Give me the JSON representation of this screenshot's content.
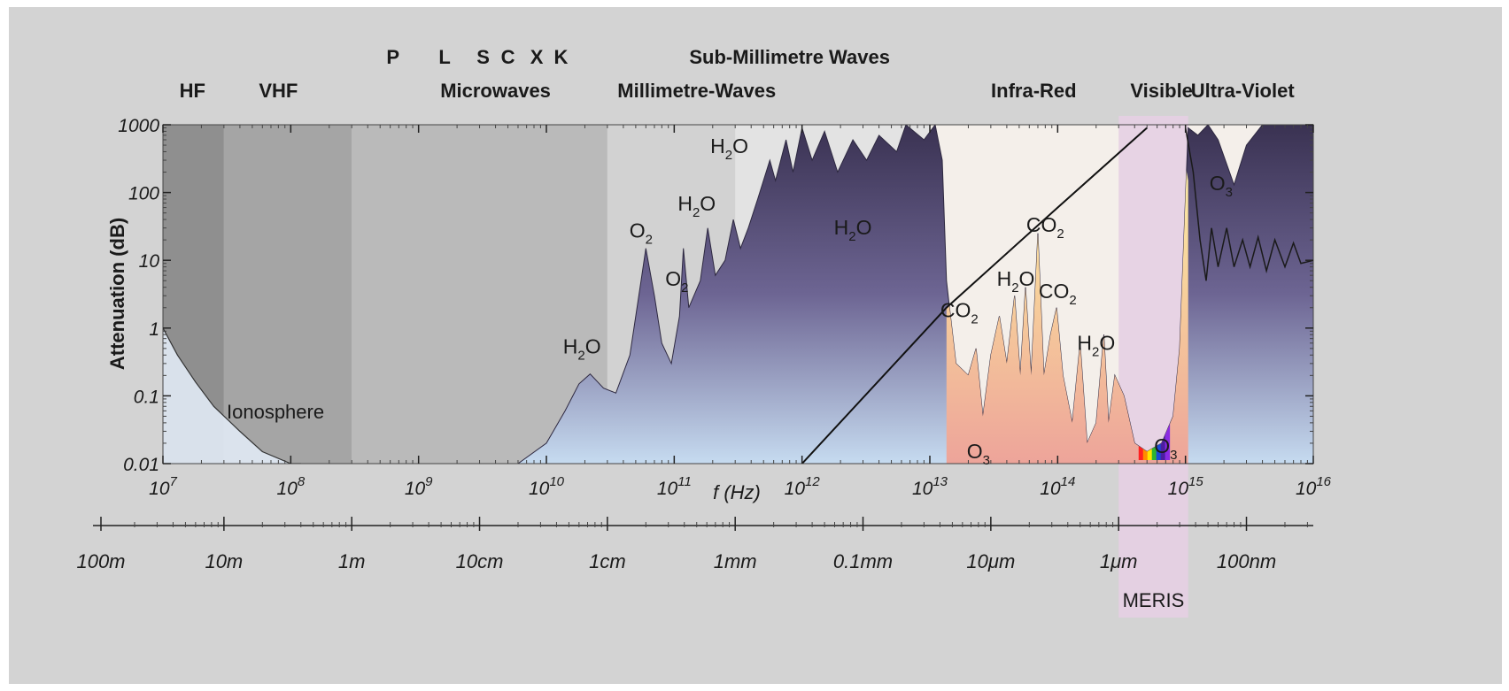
{
  "chart_data": {
    "type": "area",
    "title": "",
    "ylabel": "Attenuation (dB)",
    "xlabel": "f (Hz)",
    "x_scale": "log",
    "y_scale": "log",
    "xlim": [
      10000000.0,
      1e+16
    ],
    "ylim": [
      0.01,
      1000
    ],
    "x_ticks": [
      {
        "value": 10000000.0,
        "base": "10",
        "exp": "7"
      },
      {
        "value": 100000000.0,
        "base": "10",
        "exp": "8"
      },
      {
        "value": 1000000000.0,
        "base": "10",
        "exp": "9"
      },
      {
        "value": 10000000000.0,
        "base": "10",
        "exp": "10"
      },
      {
        "value": 100000000000.0,
        "base": "10",
        "exp": "11"
      },
      {
        "value": 1000000000000.0,
        "base": "10",
        "exp": "12"
      },
      {
        "value": 10000000000000.0,
        "base": "10",
        "exp": "13"
      },
      {
        "value": 100000000000000.0,
        "base": "10",
        "exp": "14"
      },
      {
        "value": 1000000000000000.0,
        "base": "10",
        "exp": "15"
      },
      {
        "value": 1e+16,
        "base": "10",
        "exp": "16"
      }
    ],
    "y_ticks": [
      {
        "value": 1000,
        "label": "1000"
      },
      {
        "value": 100,
        "label": "100"
      },
      {
        "value": 10,
        "label": "10"
      },
      {
        "value": 1,
        "label": "1"
      },
      {
        "value": 0.1,
        "label": "0.1"
      },
      {
        "value": 0.01,
        "label": "0.01"
      }
    ],
    "wavelength_ticks": [
      {
        "freq": 3000000.0,
        "label": "100m"
      },
      {
        "freq": 30000000.0,
        "label": "10m"
      },
      {
        "freq": 300000000.0,
        "label": "1m"
      },
      {
        "freq": 3000000000.0,
        "label": "10cm"
      },
      {
        "freq": 30000000000.0,
        "label": "1cm"
      },
      {
        "freq": 300000000000.0,
        "label": "1mm"
      },
      {
        "freq": 3000000000000.0,
        "label": "0.1mm"
      },
      {
        "freq": 30000000000000.0,
        "label": "10μm"
      },
      {
        "freq": 300000000000000.0,
        "label": "1μm"
      },
      {
        "freq": 3000000000000000.0,
        "label": "100nm"
      }
    ],
    "band_labels_upper": [
      {
        "freq": 630000000.0,
        "text": "P"
      },
      {
        "freq": 1600000000.0,
        "text": "L"
      },
      {
        "freq": 3200000000.0,
        "text": "S"
      },
      {
        "freq": 5000000000.0,
        "text": "C"
      },
      {
        "freq": 8400000000.0,
        "text": "X"
      },
      {
        "freq": 13000000000.0,
        "text": "K"
      },
      {
        "freq": 800000000000.0,
        "text": "Sub-Millimetre Waves"
      }
    ],
    "band_labels": [
      {
        "freq": 17000000.0,
        "text": "HF"
      },
      {
        "freq": 80000000.0,
        "text": "VHF"
      },
      {
        "freq": 4000000000.0,
        "text": "Microwaves"
      },
      {
        "freq": 150000000000.0,
        "text": "Millimetre-Waves"
      },
      {
        "freq": 65000000000000.0,
        "text": "Infra-Red"
      },
      {
        "freq": 650000000000000.0,
        "text": "Visible"
      },
      {
        "freq": 2800000000000000.0,
        "text": "Ultra-Violet"
      }
    ],
    "regions": [
      {
        "name": "hf",
        "from": 10000000.0,
        "to": 30000000.0,
        "color": "#8f8f8f"
      },
      {
        "name": "vhf",
        "from": 30000000.0,
        "to": 300000000.0,
        "color": "#a5a5a5"
      },
      {
        "name": "microwave",
        "from": 300000000.0,
        "to": 30000000000.0,
        "color": "#bababa"
      },
      {
        "name": "millimetre",
        "from": 30000000000.0,
        "to": 300000000000.0,
        "color": "#d2d2d2"
      },
      {
        "name": "submillimetre",
        "from": 300000000000.0,
        "to": 10000000000000.0,
        "color": "#e3e3e3"
      },
      {
        "name": "infrared",
        "from": 10000000000000.0,
        "to": 1e+16,
        "color": "#f4efea"
      }
    ],
    "ionosphere_label": "Ionosphere",
    "ionosphere_cutoff": [
      [
        10000000.0,
        1
      ],
      [
        13000000.0,
        0.4
      ],
      [
        18000000.0,
        0.16
      ],
      [
        25000000.0,
        0.07
      ],
      [
        40000000.0,
        0.03
      ],
      [
        60000000.0,
        0.015
      ],
      [
        100000000.0,
        0.01
      ],
      [
        120000000.0,
        0.01
      ]
    ],
    "atmospheric_attenuation": [
      [
        10000000.0,
        0.01
      ],
      [
        6000000000.0,
        0.01
      ],
      [
        10000000000.0,
        0.02
      ],
      [
        14000000000.0,
        0.06
      ],
      [
        18000000000.0,
        0.15
      ],
      [
        22000000000.0,
        0.21
      ],
      [
        28000000000.0,
        0.13
      ],
      [
        35000000000.0,
        0.11
      ],
      [
        45000000000.0,
        0.4
      ],
      [
        55000000000.0,
        5
      ],
      [
        60000000000.0,
        15
      ],
      [
        70000000000.0,
        3
      ],
      [
        80000000000.0,
        0.6
      ],
      [
        95000000000.0,
        0.3
      ],
      [
        110000000000.0,
        1.5
      ],
      [
        118000000000.0,
        15
      ],
      [
        130000000000.0,
        2
      ],
      [
        160000000000.0,
        5
      ],
      [
        183000000000.0,
        30
      ],
      [
        210000000000.0,
        6
      ],
      [
        250000000000.0,
        10
      ],
      [
        290000000000.0,
        40
      ],
      [
        330000000000.0,
        15
      ],
      [
        380000000000.0,
        30
      ],
      [
        450000000000.0,
        80
      ],
      [
        560000000000.0,
        300
      ],
      [
        620000000000.0,
        150
      ],
      [
        750000000000.0,
        600
      ],
      [
        850000000000.0,
        200
      ],
      [
        1000000000000.0,
        900
      ],
      [
        1200000000000.0,
        300
      ],
      [
        1500000000000.0,
        800
      ],
      [
        1900000000000.0,
        200
      ],
      [
        2500000000000.0,
        600
      ],
      [
        3200000000000.0,
        300
      ],
      [
        4000000000000.0,
        700
      ],
      [
        5500000000000.0,
        400
      ],
      [
        6500000000000.0,
        1000
      ],
      [
        9000000000000.0,
        600
      ],
      [
        11000000000000.0,
        1000
      ],
      [
        12500000000000.0,
        300
      ],
      [
        13500000000000.0,
        5
      ],
      [
        14500000000000.0,
        1.5
      ],
      [
        16000000000000.0,
        0.3
      ],
      [
        20000000000000.0,
        0.2
      ],
      [
        23000000000000.0,
        0.5
      ],
      [
        26000000000000.0,
        0.05
      ],
      [
        30000000000000.0,
        0.4
      ],
      [
        35000000000000.0,
        1.5
      ],
      [
        40000000000000.0,
        0.3
      ],
      [
        46000000000000.0,
        3
      ],
      [
        51000000000000.0,
        0.2
      ],
      [
        56000000000000.0,
        4
      ],
      [
        62000000000000.0,
        0.2
      ],
      [
        70000000000000.0,
        25
      ],
      [
        78000000000000.0,
        0.2
      ],
      [
        88000000000000.0,
        0.8
      ],
      [
        98000000000000.0,
        2
      ],
      [
        110000000000000.0,
        0.2
      ],
      [
        130000000000000.0,
        0.04
      ],
      [
        150000000000000.0,
        0.6
      ],
      [
        170000000000000.0,
        0.02
      ],
      [
        200000000000000.0,
        0.04
      ],
      [
        230000000000000.0,
        0.8
      ],
      [
        250000000000000.0,
        0.04
      ],
      [
        280000000000000.0,
        0.2
      ],
      [
        330000000000000.0,
        0.1
      ],
      [
        400000000000000.0,
        0.02
      ],
      [
        500000000000000.0,
        0.015
      ],
      [
        650000000000000.0,
        0.02
      ],
      [
        800000000000000.0,
        0.05
      ],
      [
        900000000000000.0,
        0.5
      ],
      [
        1050000000000000.0,
        900
      ],
      [
        1250000000000000.0,
        700
      ],
      [
        1500000000000000.0,
        1000
      ],
      [
        1800000000000000.0,
        600
      ],
      [
        2400000000000000.0,
        130
      ],
      [
        3000000000000000.0,
        500
      ],
      [
        4000000000000000.0,
        1000
      ],
      [
        1e+16,
        1000
      ]
    ],
    "ozone_line": [
      [
        1000000000000000.0,
        900
      ],
      [
        1150000000000000.0,
        200
      ],
      [
        1300000000000000.0,
        20
      ],
      [
        1450000000000000.0,
        5
      ],
      [
        1600000000000000.0,
        30
      ],
      [
        1800000000000000.0,
        8
      ],
      [
        2100000000000000.0,
        30
      ],
      [
        2400000000000000.0,
        8
      ],
      [
        2800000000000000.0,
        20
      ],
      [
        3200000000000000.0,
        8
      ],
      [
        3700000000000000.0,
        22
      ],
      [
        4300000000000000.0,
        7
      ],
      [
        5000000000000000.0,
        20
      ],
      [
        6000000000000000.0,
        8
      ],
      [
        7000000000000000.0,
        18
      ],
      [
        8000000000000000.0,
        9
      ],
      [
        1e+16,
        10
      ]
    ],
    "transmission_envelope": [
      [
        1000000000000.0,
        0.01
      ],
      [
        13500000000000.0,
        2
      ],
      [
        100000000000000.0,
        60
      ],
      [
        500000000000000.0,
        900
      ]
    ],
    "gas_labels": [
      {
        "freq": 19000000000.0,
        "value": 0.35,
        "main": "H",
        "sub": "2",
        "tail": "O"
      },
      {
        "freq": 55000000000.0,
        "value": 18,
        "main": "O",
        "sub": "2",
        "tail": ""
      },
      {
        "freq": 105000000000.0,
        "value": 3.5,
        "main": "O",
        "sub": "2",
        "tail": ""
      },
      {
        "freq": 150000000000.0,
        "value": 45,
        "main": "H",
        "sub": "2",
        "tail": "O"
      },
      {
        "freq": 270000000000.0,
        "value": 320,
        "main": "H",
        "sub": "2",
        "tail": "O"
      },
      {
        "freq": 2500000000000.0,
        "value": 20,
        "main": "H",
        "sub": "2",
        "tail": "O"
      },
      {
        "freq": 17000000000000.0,
        "value": 1.2,
        "main": "CO",
        "sub": "2",
        "tail": ""
      },
      {
        "freq": 24000000000000.0,
        "value": 0.01,
        "main": "O",
        "sub": "3",
        "tail": ""
      },
      {
        "freq": 47000000000000.0,
        "value": 3.5,
        "main": "H",
        "sub": "2",
        "tail": "O"
      },
      {
        "freq": 80000000000000.0,
        "value": 22,
        "main": "CO",
        "sub": "2",
        "tail": ""
      },
      {
        "freq": 100000000000000.0,
        "value": 2.3,
        "main": "CO",
        "sub": "2",
        "tail": ""
      },
      {
        "freq": 200000000000000.0,
        "value": 0.4,
        "main": "H",
        "sub": "2",
        "tail": "O"
      },
      {
        "freq": 700000000000000.0,
        "value": 0.012,
        "main": "O",
        "sub": "3",
        "tail": ""
      },
      {
        "freq": 1900000000000000.0,
        "value": 90,
        "main": "O",
        "sub": "3",
        "tail": ""
      }
    ],
    "visible_band": {
      "from": 430000000000000.0,
      "to": 750000000000000.0,
      "colors": [
        "#ff2020",
        "#ff8c00",
        "#ffe600",
        "#2fb52f",
        "#1a49d6",
        "#4b1ea0",
        "#8a2be2"
      ]
    },
    "meris_band": {
      "from": 300000000000000.0,
      "to": 1050000000000000.0,
      "label": "MERIS",
      "color": "#e6cfe3"
    }
  },
  "colors": {
    "background": "#d3d3d3",
    "plot_background": "#f4efea",
    "attenuation_top": "#3a3252",
    "attenuation_bottom": "#c6dbf0",
    "window_top": "#fbf2a0",
    "window_bottom": "#eda49a"
  }
}
